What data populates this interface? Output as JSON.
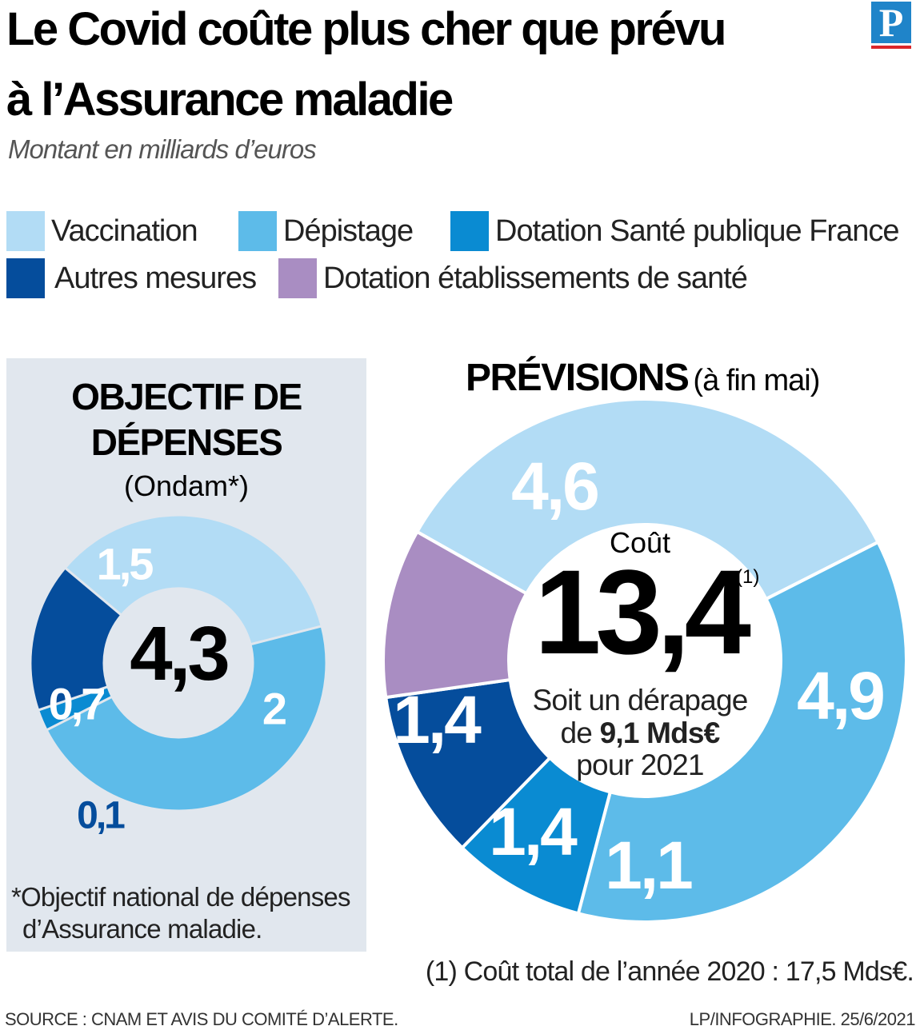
{
  "title_line1": "Le Covid coûte plus cher que prévu",
  "title_line2": "à l’Assurance maladie",
  "subtitle": "Montant en milliards d’euros",
  "logo_letter": "P",
  "colors": {
    "vaccination": "#b2dcf5",
    "depistage": "#5dbbe9",
    "dotation_spf": "#0a8bd2",
    "autres": "#054d9c",
    "etablissements": "#a98dc2",
    "panel": "#e1e7ee",
    "brand": "#1f84c9",
    "brand_line": "#d9262b"
  },
  "legend": [
    {
      "label": "Vaccination",
      "color": "#b2dcf5"
    },
    {
      "label": "Dépistage",
      "color": "#5dbbe9"
    },
    {
      "label": "Dotation Santé publique France",
      "color": "#0a8bd2"
    },
    {
      "label": "Autres mesures",
      "color": "#054d9c"
    },
    {
      "label": "Dotation établissements de santé",
      "color": "#a98dc2"
    }
  ],
  "left_panel": {
    "heading_line1": "OBJECTIF DE",
    "heading_line2": "DÉPENSES",
    "subheading": "(Ondam*)",
    "total": "4,3",
    "footnote_line1": "*Objectif national de dépenses",
    "footnote_line2": "d’Assurance maladie."
  },
  "right_panel": {
    "heading_bold": "PRÉVISIONS",
    "heading_normal": "(à fin mai)",
    "center_label": "Coût",
    "total": "13,4",
    "total_note": "(1)",
    "drift_line1": "Soit un dérapage",
    "drift_line2_prefix": "de",
    "drift_line2_bold": "9,1 Mds€",
    "drift_line3": "pour 2021",
    "footnote": "(1) Coût total de l’année 2020 : 17,5 Mds€."
  },
  "footer": {
    "source": "SOURCE : CNAM ET AVIS DU COMITÉ D’ALERTE.",
    "credit": "LP/INFOGRAPHIE.  25/6/2021"
  },
  "chart_data": [
    {
      "type": "pie",
      "variant": "donut",
      "title": "OBJECTIF DE DÉPENSES (Ondam*)",
      "unit": "milliards d’euros",
      "total": 4.3,
      "slices": [
        {
          "name": "Vaccination",
          "value": 1.5,
          "label": "1,5",
          "color": "#b2dcf5"
        },
        {
          "name": "Dépistage",
          "value": 2.0,
          "label": "2",
          "color": "#5dbbe9"
        },
        {
          "name": "Dotation Santé publique France",
          "value": 0.1,
          "label": "0,1",
          "color": "#0a8bd2"
        },
        {
          "name": "Autres mesures",
          "value": 0.7,
          "label": "0,7",
          "color": "#054d9c"
        }
      ]
    },
    {
      "type": "pie",
      "variant": "donut",
      "title": "PRÉVISIONS (à fin mai)",
      "unit": "milliards d’euros",
      "total": 13.4,
      "slices": [
        {
          "name": "Vaccination",
          "value": 4.6,
          "label": "4,6",
          "color": "#b2dcf5"
        },
        {
          "name": "Dépistage",
          "value": 4.9,
          "label": "4,9",
          "color": "#5dbbe9"
        },
        {
          "name": "Dotation Santé publique France",
          "value": 1.1,
          "label": "1,1",
          "color": "#0a8bd2"
        },
        {
          "name": "Autres mesures",
          "value": 1.4,
          "label": "1,4",
          "color": "#054d9c"
        },
        {
          "name": "Dotation établissements de santé",
          "value": 1.4,
          "label": "1,4",
          "color": "#a98dc2"
        }
      ]
    }
  ]
}
